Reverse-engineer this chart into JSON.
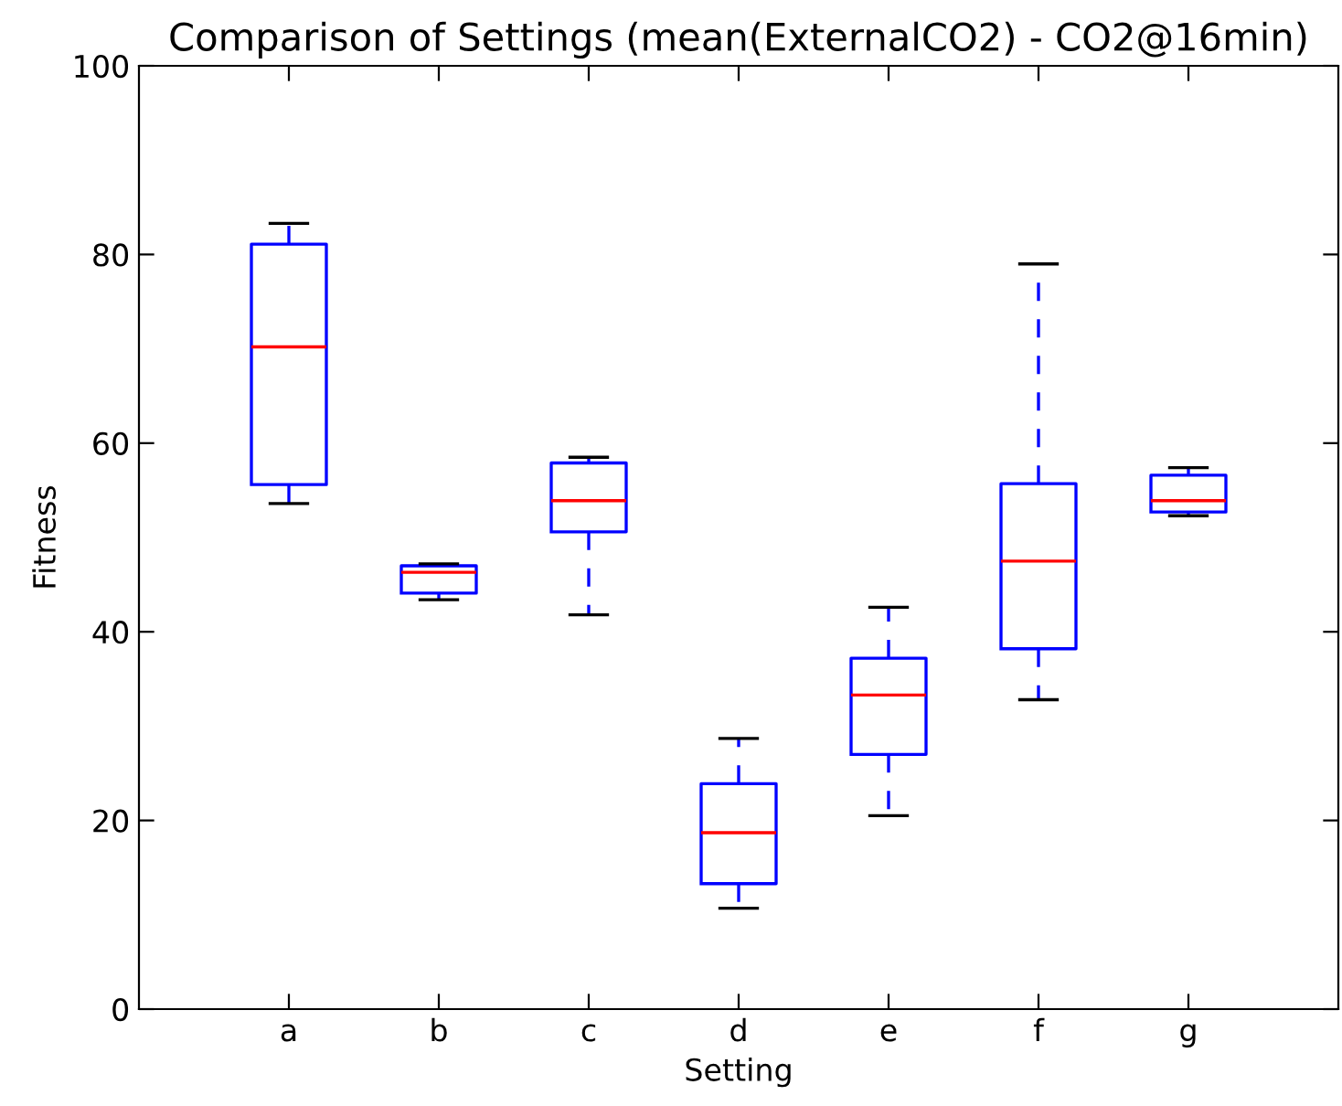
{
  "chart_data": {
    "type": "box",
    "title": "Comparison of Settings (mean(ExternalCO2) - CO2@16min)",
    "xlabel": "Setting",
    "ylabel": "Fitness",
    "categories": [
      "a",
      "b",
      "c",
      "d",
      "e",
      "f",
      "g"
    ],
    "boxes": [
      {
        "low": 53.6,
        "q1": 55.6,
        "median": 70.2,
        "q3": 81.1,
        "high": 83.3
      },
      {
        "low": 43.4,
        "q1": 44.1,
        "median": 46.3,
        "q3": 47.0,
        "high": 47.2
      },
      {
        "low": 41.8,
        "q1": 50.6,
        "median": 53.9,
        "q3": 57.9,
        "high": 58.5
      },
      {
        "low": 10.7,
        "q1": 13.3,
        "median": 18.7,
        "q3": 23.9,
        "high": 28.7
      },
      {
        "low": 20.5,
        "q1": 27.0,
        "median": 33.3,
        "q3": 37.2,
        "high": 42.6
      },
      {
        "low": 32.8,
        "q1": 38.2,
        "median": 47.5,
        "q3": 55.7,
        "high": 79.0
      },
      {
        "low": 52.3,
        "q1": 52.7,
        "median": 53.9,
        "q3": 56.6,
        "high": 57.4
      }
    ],
    "color": "#0000ff",
    "ylim": [
      0,
      100
    ],
    "yticks": [
      0,
      20,
      40,
      60,
      80,
      100
    ],
    "grid": false,
    "line_style": "dashed"
  }
}
